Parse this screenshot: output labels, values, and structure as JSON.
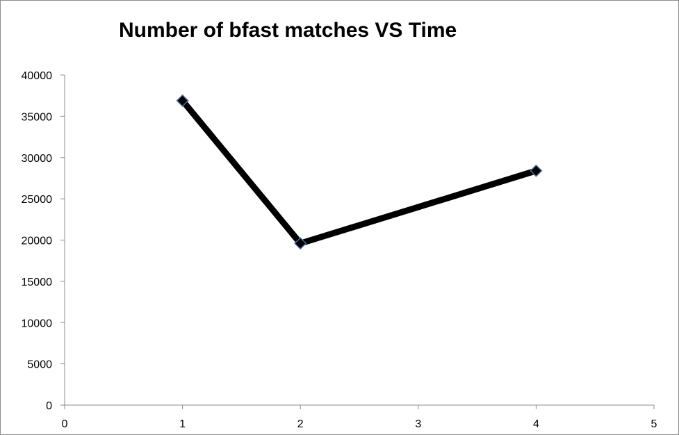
{
  "chart_data": {
    "type": "line",
    "title": "Number of bfast matches VS Time",
    "xlabel": "",
    "ylabel": "",
    "xlim": [
      0,
      5
    ],
    "ylim": [
      0,
      40000
    ],
    "x_ticks": [
      "0",
      "1",
      "2",
      "3",
      "4",
      "5"
    ],
    "y_ticks": [
      "0",
      "5000",
      "10000",
      "15000",
      "20000",
      "25000",
      "30000",
      "35000",
      "40000"
    ],
    "grid": false,
    "legend": "none",
    "series": [
      {
        "name": "bfast matches",
        "x": [
          1,
          2,
          4
        ],
        "values": [
          36900,
          19600,
          28400
        ]
      }
    ],
    "colors": {
      "line": "#000000",
      "marker_fill": "#000000",
      "marker_edge": "#4a6fa5",
      "axis": "#8c8c8c"
    }
  }
}
